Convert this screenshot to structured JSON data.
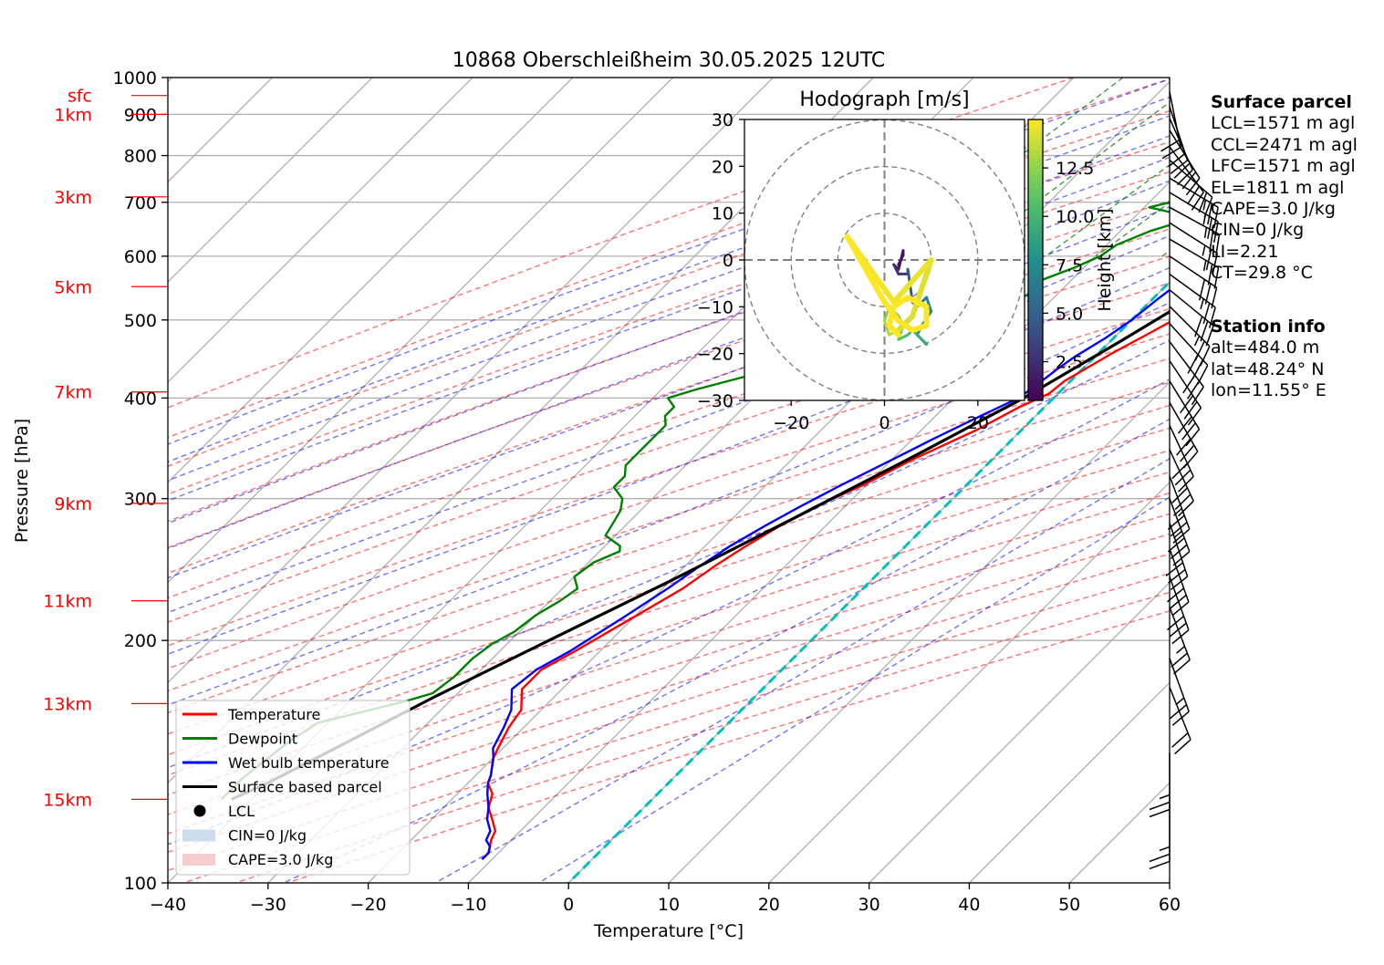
{
  "chart_data": {
    "type": "line",
    "title": "10868 Oberschleißheim 30.05.2025 12UTC",
    "xlabel": "Temperature [°C]",
    "ylabel": "Pressure [hPa]",
    "xlim": [
      -40,
      60
    ],
    "ylim": [
      1000,
      100
    ],
    "x_ticks": [
      -40,
      -30,
      -20,
      -10,
      0,
      10,
      20,
      30,
      40,
      50,
      60
    ],
    "y_ticks": [
      100,
      200,
      300,
      400,
      500,
      600,
      700,
      800,
      900,
      1000
    ],
    "y_scale": "log",
    "grid": true,
    "legend": {
      "placement": "lower-left",
      "entries": [
        {
          "label": "Temperature",
          "color": "#ff0000"
        },
        {
          "label": "Dewpoint",
          "color": "#008000"
        },
        {
          "label": "Wet bulb temperature",
          "color": "#0000ff"
        },
        {
          "label": "Surface based parcel",
          "color": "#000000"
        },
        {
          "label": "LCL",
          "color": "#000000"
        },
        {
          "label": "CIN=0 J/kg",
          "color": "#c6d9ec"
        },
        {
          "label": "CAPE=3.0 J/kg",
          "color": "#f5c8c8"
        }
      ]
    },
    "height_labels": [
      {
        "label": "15km",
        "p": 127
      },
      {
        "label": "13km",
        "p": 167
      },
      {
        "label": "11km",
        "p": 224
      },
      {
        "label": "9km",
        "p": 296
      },
      {
        "label": "7km",
        "p": 407
      },
      {
        "label": "5km",
        "p": 550
      },
      {
        "label": "3km",
        "p": 711
      },
      {
        "label": "1km",
        "p": 900
      },
      {
        "label": "sfc",
        "p": 950
      }
    ],
    "series": [
      {
        "name": "Temperature",
        "color": "#ff0000",
        "points": [
          [
            23.2,
            963
          ],
          [
            18.5,
            930
          ],
          [
            15.4,
            896
          ],
          [
            14.0,
            870
          ],
          [
            13.3,
            845
          ],
          [
            13.4,
            825
          ],
          [
            15.6,
            810
          ],
          [
            14.7,
            790
          ],
          [
            14.5,
            760
          ],
          [
            15.0,
            730
          ],
          [
            12.6,
            690
          ],
          [
            11.0,
            650
          ],
          [
            10.0,
            630
          ],
          [
            7.5,
            590
          ],
          [
            5.8,
            555
          ],
          [
            4.5,
            525
          ],
          [
            4.2,
            500
          ],
          [
            3.0,
            480
          ],
          [
            1.4,
            455
          ],
          [
            -0.6,
            420
          ],
          [
            -0.9,
            405
          ],
          [
            -2.5,
            390
          ],
          [
            -4.5,
            365
          ],
          [
            -8.0,
            335
          ],
          [
            -10.3,
            312
          ],
          [
            -13.0,
            293
          ],
          [
            -14.5,
            278
          ],
          [
            -16.0,
            261
          ],
          [
            -17.0,
            248
          ],
          [
            -18.0,
            232
          ],
          [
            -20.0,
            214
          ],
          [
            -22.5,
            194
          ],
          [
            -24.0,
            184
          ],
          [
            -24.0,
            174
          ],
          [
            -22.0,
            164
          ],
          [
            -21.5,
            156
          ],
          [
            -20.5,
            147
          ],
          [
            -20.0,
            143
          ],
          [
            -18.5,
            136
          ],
          [
            -18.0,
            133
          ],
          [
            -16.5,
            129
          ],
          [
            -15.5,
            124
          ],
          [
            -14.0,
            120
          ],
          [
            -12.5,
            116
          ],
          [
            -12.0,
            113
          ],
          [
            -11.5,
            111
          ],
          [
            -11.0,
            109
          ],
          [
            -11.0,
            107
          ]
        ]
      },
      {
        "name": "Dewpoint",
        "color": "#008000",
        "points": [
          [
            10.5,
            963
          ],
          [
            10.0,
            940
          ],
          [
            11.0,
            925
          ],
          [
            12.0,
            900
          ],
          [
            12.2,
            865
          ],
          [
            12.5,
            840
          ],
          [
            13.0,
            810
          ],
          [
            8.0,
            790
          ],
          [
            1.0,
            760
          ],
          [
            -3.0,
            735
          ],
          [
            -6.0,
            712
          ],
          [
            -9.5,
            690
          ],
          [
            -4.0,
            670
          ],
          [
            -7.0,
            645
          ],
          [
            -9.0,
            620
          ],
          [
            -9.5,
            600
          ],
          [
            -11.0,
            580
          ],
          [
            -13.0,
            560
          ],
          [
            -12.5,
            540
          ],
          [
            -15.0,
            520
          ],
          [
            -20.0,
            510
          ],
          [
            -22.0,
            490
          ],
          [
            -28.0,
            450
          ],
          [
            -33.0,
            425
          ],
          [
            -36.5,
            410
          ],
          [
            -38.5,
            400
          ],
          [
            -37.0,
            390
          ],
          [
            -37.0,
            380
          ],
          [
            -36.0,
            370
          ],
          [
            -36.0,
            360
          ],
          [
            -36.0,
            350
          ],
          [
            -36.0,
            340
          ],
          [
            -36.0,
            330
          ],
          [
            -35.0,
            320
          ],
          [
            -35.0,
            310
          ],
          [
            -33.0,
            300
          ],
          [
            -32.0,
            290
          ],
          [
            -31.5,
            280
          ],
          [
            -31.0,
            270
          ],
          [
            -28.5,
            262
          ],
          [
            -28.0,
            258
          ],
          [
            -29.5,
            250
          ],
          [
            -30.0,
            240
          ],
          [
            -28.5,
            232
          ],
          [
            -29.0,
            224
          ],
          [
            -30.0,
            215
          ],
          [
            -30.5,
            205
          ],
          [
            -31.5,
            198
          ],
          [
            -32.0,
            190
          ],
          [
            -32.0,
            180
          ],
          [
            -32.5,
            172
          ],
          [
            -34.5,
            168
          ],
          [
            -41.0,
            158
          ],
          [
            -42.0,
            150
          ],
          [
            -42.5,
            142
          ],
          [
            -43.0,
            135
          ],
          [
            -43.0,
            130
          ],
          [
            -43.0,
            127
          ]
        ]
      },
      {
        "name": "Wet bulb temperature",
        "color": "#0000ff",
        "points": [
          [
            15.3,
            963
          ],
          [
            14.5,
            930
          ],
          [
            14.0,
            900
          ],
          [
            13.5,
            870
          ],
          [
            13.3,
            845
          ],
          [
            13.0,
            825
          ],
          [
            11.0,
            805
          ],
          [
            9.0,
            790
          ],
          [
            8.0,
            770
          ],
          [
            7.0,
            745
          ],
          [
            6.0,
            715
          ],
          [
            5.0,
            685
          ],
          [
            4.0,
            655
          ],
          [
            3.0,
            620
          ],
          [
            2.5,
            590
          ],
          [
            1.0,
            555
          ],
          [
            0.5,
            530
          ],
          [
            0.0,
            500
          ],
          [
            -0.8,
            475
          ],
          [
            -2.0,
            450
          ],
          [
            -2.5,
            435
          ],
          [
            -3.0,
            415
          ],
          [
            -3.5,
            400
          ],
          [
            -5.5,
            380
          ],
          [
            -8.0,
            355
          ],
          [
            -10.0,
            335
          ],
          [
            -12.5,
            312
          ],
          [
            -14.5,
            293
          ],
          [
            -16.0,
            278
          ],
          [
            -17.5,
            262
          ],
          [
            -18.5,
            248
          ],
          [
            -19.5,
            232
          ],
          [
            -21.0,
            214
          ],
          [
            -23.0,
            194
          ],
          [
            -24.5,
            184
          ],
          [
            -25.0,
            174
          ],
          [
            -23.0,
            164
          ],
          [
            -22.0,
            156
          ],
          [
            -21.0,
            147
          ],
          [
            -20.0,
            143
          ],
          [
            -18.5,
            136
          ],
          [
            -18.0,
            133
          ],
          [
            -17.0,
            129
          ],
          [
            -15.5,
            124
          ],
          [
            -14.5,
            120
          ],
          [
            -13.0,
            116
          ],
          [
            -12.5,
            113
          ],
          [
            -11.5,
            111
          ],
          [
            -11.0,
            109
          ],
          [
            -11.0,
            107
          ]
        ]
      },
      {
        "name": "Surface based parcel",
        "color": "#000000",
        "points": [
          [
            23.2,
            963
          ],
          [
            20.0,
            920
          ],
          [
            17.0,
            880
          ],
          [
            13.5,
            842
          ],
          [
            11.5,
            780
          ],
          [
            9.0,
            700
          ],
          [
            6.8,
            620
          ],
          [
            4.2,
            540
          ],
          [
            1.0,
            470
          ],
          [
            -3.0,
            400
          ],
          [
            -8.0,
            340
          ],
          [
            -14.0,
            283
          ],
          [
            -20.0,
            237
          ],
          [
            -26.0,
            201
          ],
          [
            -32.0,
            170
          ],
          [
            -36.5,
            148
          ],
          [
            -40.0,
            133
          ],
          [
            -42.0,
            127
          ]
        ]
      }
    ],
    "lcl": {
      "t": 13.5,
      "p": 842
    },
    "hodograph": {
      "title": "Hodograph [m/s]",
      "xlim": [
        -30,
        30
      ],
      "ylim": [
        -30,
        30
      ],
      "x_ticks": [
        -20,
        0,
        20
      ],
      "y_ticks": [
        -30,
        -20,
        -10,
        0,
        10,
        20,
        30
      ],
      "rings": [
        10,
        20,
        30
      ],
      "colorbar": {
        "label": "Height [km]",
        "ticks": [
          2.5,
          5.0,
          7.5,
          10.0,
          12.5
        ],
        "tick_labels": [
          "2.5",
          "5.0",
          "7.5",
          "10.0",
          "12.5"
        ],
        "range": [
          0.5,
          15
        ]
      },
      "points": [
        [
          3,
          -1,
          0.5
        ],
        [
          4,
          1,
          0.8
        ],
        [
          4,
          2,
          1.0
        ],
        [
          3,
          -2,
          1.5
        ],
        [
          2,
          -1,
          2.0
        ],
        [
          3,
          -3,
          2.5
        ],
        [
          5,
          -3,
          3.0
        ],
        [
          5,
          -2,
          3.5
        ],
        [
          6,
          -9,
          4.5
        ],
        [
          7,
          -10,
          5.5
        ],
        [
          8,
          -9,
          6.0
        ],
        [
          9,
          -8,
          6.5
        ],
        [
          10,
          -11,
          7.0
        ],
        [
          8,
          -14,
          7.5
        ],
        [
          7,
          -16,
          8.0
        ],
        [
          9,
          -18,
          8.5
        ],
        [
          8,
          -17,
          9.0
        ],
        [
          6,
          -15,
          9.5
        ],
        [
          5,
          -16,
          10.0
        ],
        [
          3,
          -17,
          10.5
        ],
        [
          4,
          -14,
          11.0
        ],
        [
          3,
          -12,
          11.5
        ],
        [
          1,
          -10,
          12.0
        ],
        [
          0,
          -13,
          12.5
        ],
        [
          1,
          -16,
          13.0
        ],
        [
          3,
          -15,
          13.5
        ],
        [
          6,
          -12,
          14.0
        ],
        [
          10,
          0,
          14.3
        ],
        [
          2,
          -9,
          14.6
        ],
        [
          -8,
          5,
          14.8
        ],
        [
          0,
          -9,
          15.0
        ],
        [
          3,
          -13,
          15.0
        ],
        [
          6,
          -15,
          15.0
        ],
        [
          9,
          -14,
          15.0
        ],
        [
          9,
          -10,
          15.0
        ],
        [
          5,
          -8,
          15.0
        ],
        [
          2,
          -10,
          15.0
        ],
        [
          1,
          -14,
          15.0
        ],
        [
          3,
          -16,
          15.0
        ]
      ]
    },
    "wind_barbs": [
      {
        "p": 960,
        "u": -2,
        "v": 10
      },
      {
        "p": 920,
        "u": -3,
        "v": 9
      },
      {
        "p": 890,
        "u": -4,
        "v": 9
      },
      {
        "p": 860,
        "u": -5,
        "v": 8
      },
      {
        "p": 820,
        "u": -6,
        "v": 8
      },
      {
        "p": 790,
        "u": -8,
        "v": 7
      },
      {
        "p": 750,
        "u": -10,
        "v": 6
      },
      {
        "p": 720,
        "u": -10,
        "v": 6
      },
      {
        "p": 690,
        "u": -11,
        "v": 6
      },
      {
        "p": 660,
        "u": -11,
        "v": 7
      },
      {
        "p": 630,
        "u": -12,
        "v": 7
      },
      {
        "p": 600,
        "u": -12,
        "v": 8
      },
      {
        "p": 570,
        "u": -11,
        "v": 8
      },
      {
        "p": 545,
        "u": -11,
        "v": 9
      },
      {
        "p": 520,
        "u": -10,
        "v": 10
      },
      {
        "p": 495,
        "u": -10,
        "v": 11
      },
      {
        "p": 470,
        "u": -9,
        "v": 12
      },
      {
        "p": 445,
        "u": -8,
        "v": 12
      },
      {
        "p": 420,
        "u": -8,
        "v": 13
      },
      {
        "p": 395,
        "u": -8,
        "v": 14
      },
      {
        "p": 370,
        "u": -7,
        "v": 15
      },
      {
        "p": 345,
        "u": -7,
        "v": 15
      },
      {
        "p": 320,
        "u": -6,
        "v": 16
      },
      {
        "p": 300,
        "u": -6,
        "v": 16
      },
      {
        "p": 280,
        "u": -5,
        "v": 15
      },
      {
        "p": 260,
        "u": -5,
        "v": 14
      },
      {
        "p": 240,
        "u": -5,
        "v": 14
      },
      {
        "p": 220,
        "u": -5,
        "v": 13
      },
      {
        "p": 190,
        "u": -4,
        "v": 11
      },
      {
        "p": 175,
        "u": -4,
        "v": 10
      },
      {
        "p": 145,
        "u": 0,
        "v": 12
      },
      {
        "p": 125,
        "u": 0,
        "v": 13
      }
    ]
  },
  "surface_parcel": {
    "heading": "Surface parcel",
    "lines": [
      "LCL=1571 m agl",
      "CCL=2471 m agl",
      "LFC=1571 m agl",
      "EL=1811 m agl",
      "CAPE=3.0 J/kg",
      "CIN=0 J/kg",
      "LI=2.21",
      "CT=29.8 °C"
    ]
  },
  "station_info": {
    "heading": "Station info",
    "lines": [
      "alt=484.0 m",
      "lat=48.24° N",
      "lon=11.55° E"
    ]
  },
  "colors": {
    "temperature": "#ff0000",
    "dewpoint": "#008000",
    "wetbulb": "#0000ff",
    "parcel": "#000000",
    "dry_adiabat": "#ff0000",
    "moist_adiabat": "#0000ff",
    "mixing_ratio": "#008000",
    "freezing": "#00bfbf",
    "height_label": "#ff0000"
  }
}
